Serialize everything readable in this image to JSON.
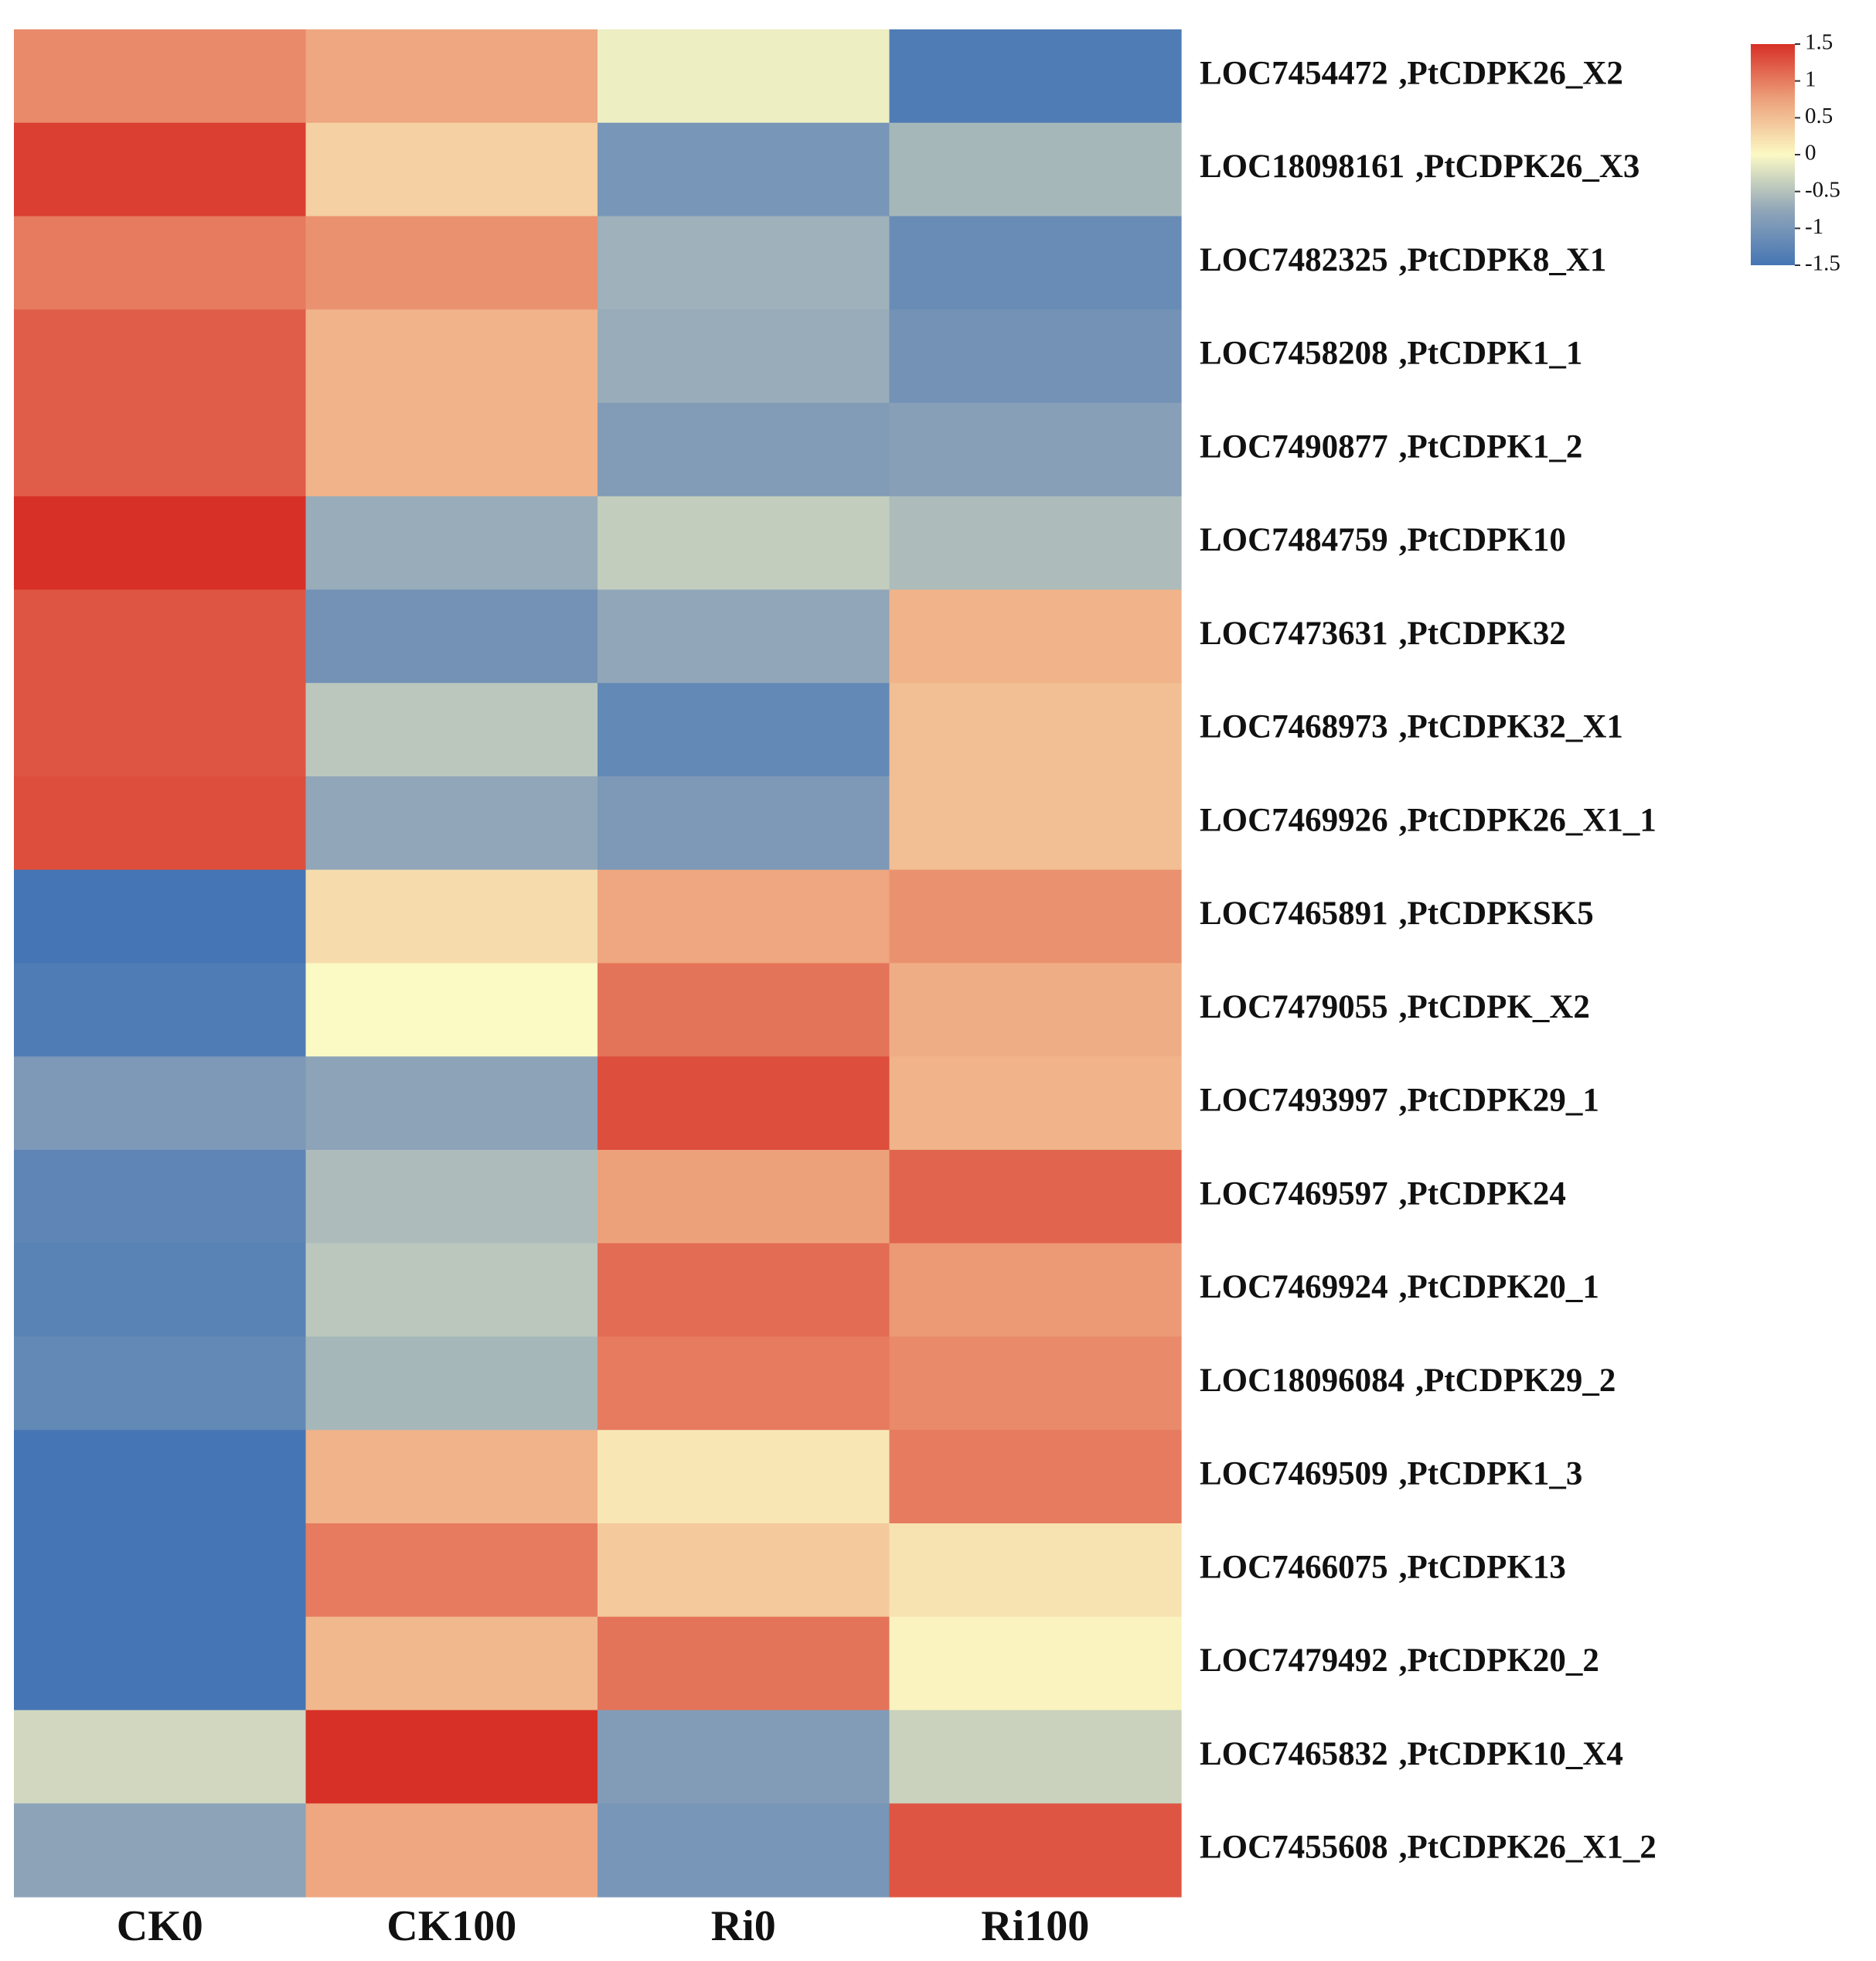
{
  "chart_data": {
    "type": "heatmap",
    "columns": [
      "CK0",
      "CK100",
      "Ri0",
      "Ri100"
    ],
    "rows": [
      {
        "id": "LOC7454472",
        "name": ",PtCDPK26_X2",
        "values": [
          0.9,
          0.7,
          -0.1,
          -1.4
        ]
      },
      {
        "id": "LOC18098161",
        "name": ",PtCDPK26_X3",
        "values": [
          1.4,
          0.35,
          -1.0,
          -0.6
        ]
      },
      {
        "id": "LOC7482325",
        "name": ",PtCDPK8_X1",
        "values": [
          1.0,
          0.85,
          -0.65,
          -1.15
        ]
      },
      {
        "id": "LOC7458208",
        "name": ",PtCDPK1_1",
        "values": [
          1.2,
          0.6,
          -0.7,
          -1.05
        ]
      },
      {
        "id": "LOC7490877",
        "name": ",PtCDPK1_2",
        "values": [
          1.2,
          0.6,
          -0.9,
          -0.85
        ]
      },
      {
        "id": "LOC7484759",
        "name": ",PtCDPK10",
        "values": [
          1.6,
          -0.7,
          -0.4,
          -0.55
        ]
      },
      {
        "id": "LOC7473631",
        "name": ",PtCDPK32",
        "values": [
          1.25,
          -1.05,
          -0.75,
          0.6
        ]
      },
      {
        "id": "LOC7468973",
        "name": ",PtCDPK32_X1",
        "values": [
          1.25,
          -0.45,
          -1.2,
          0.5
        ]
      },
      {
        "id": "LOC7469926",
        "name": ",PtCDPK26_X1_1",
        "values": [
          1.3,
          -0.75,
          -0.95,
          0.5
        ]
      },
      {
        "id": "LOC7465891",
        "name": ",PtCDPKSK5",
        "values": [
          -1.5,
          0.25,
          0.7,
          0.85
        ]
      },
      {
        "id": "LOC7479055",
        "name": ",PtCDPK_X2",
        "values": [
          -1.4,
          0.0,
          1.05,
          0.65
        ]
      },
      {
        "id": "LOC7493997",
        "name": ",PtCDPK29_1",
        "values": [
          -0.95,
          -0.8,
          1.3,
          0.6
        ]
      },
      {
        "id": "LOC7469597",
        "name": ",PtCDPK24",
        "values": [
          -1.25,
          -0.55,
          0.75,
          1.15
        ]
      },
      {
        "id": "LOC7469924",
        "name": ",PtCDPK20_1",
        "values": [
          -1.3,
          -0.45,
          1.1,
          0.8
        ]
      },
      {
        "id": "LOC18096084",
        "name": ",PtCDPK29_2",
        "values": [
          -1.2,
          -0.6,
          1.0,
          0.9
        ]
      },
      {
        "id": "LOC7469509",
        "name": ",PtCDPK1_3",
        "values": [
          -1.5,
          0.6,
          0.15,
          1.0
        ]
      },
      {
        "id": "LOC7466075",
        "name": ",PtCDPK13",
        "values": [
          -1.5,
          1.0,
          0.4,
          0.2
        ]
      },
      {
        "id": "LOC7479492",
        "name": ",PtCDPK20_2",
        "values": [
          -1.5,
          0.55,
          1.05,
          0.05
        ]
      },
      {
        "id": "LOC7465832",
        "name": ",PtCDPK10_X4",
        "values": [
          -0.3,
          1.6,
          -0.9,
          -0.35
        ]
      },
      {
        "id": "LOC7455608",
        "name": ",PtCDPK26_X1_2",
        "values": [
          -0.8,
          0.7,
          -1.0,
          1.25
        ]
      }
    ],
    "color_scale": {
      "min": -1.5,
      "max": 1.5,
      "stops": [
        {
          "value": -1.5,
          "color": "#4575b4"
        },
        {
          "value": -0.75,
          "color": "#91a6b8"
        },
        {
          "value": 0,
          "color": "#fbf9c4"
        },
        {
          "value": 0.75,
          "color": "#eda17b"
        },
        {
          "value": 1.5,
          "color": "#d73027"
        }
      ],
      "ticks": [
        1.5,
        1,
        0.5,
        0,
        -0.5,
        -1,
        -1.5
      ],
      "tick_labels": [
        "1.5",
        "1",
        "0.5",
        "0",
        "-0.5",
        "-1",
        "-1.5"
      ]
    },
    "legend_position": "top-right",
    "title": "",
    "xlabel": "",
    "ylabel": ""
  }
}
